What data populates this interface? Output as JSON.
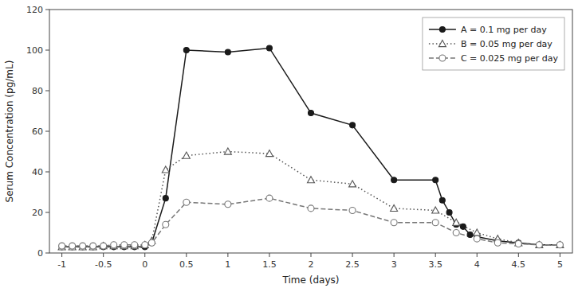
{
  "chart_data": {
    "type": "line",
    "xlabel": "Time (days)",
    "ylabel": "Serum Concentration (pg/mL)",
    "xlim": [
      -1.15,
      5.15
    ],
    "ylim": [
      0,
      120
    ],
    "xticks": [
      -1,
      -0.5,
      0,
      0.5,
      1,
      1.5,
      2,
      2.5,
      3,
      3.5,
      4,
      4.5,
      5
    ],
    "yticks": [
      0,
      20,
      40,
      60,
      80,
      100,
      120
    ],
    "grid": false,
    "legend": "upper right",
    "series": [
      {
        "name": "A = 0.1 mg per day",
        "color": "#1a1a1a",
        "marker": "circle",
        "line_style": "solid",
        "x": [
          -1,
          -0.875,
          -0.75,
          -0.625,
          -0.5,
          -0.375,
          -0.25,
          -0.125,
          0,
          0.083,
          0.25,
          0.5,
          1.0,
          1.5,
          2.0,
          2.5,
          3.0,
          3.5,
          3.583,
          3.667,
          3.75,
          3.833,
          3.917,
          4.0,
          4.25,
          4.5,
          4.75,
          5.0
        ],
        "values": [
          3,
          3,
          3,
          3,
          3,
          3,
          3,
          3,
          3,
          5,
          27,
          100,
          99,
          101,
          69,
          63,
          36,
          36,
          26,
          20,
          14,
          13,
          9,
          8,
          6,
          5,
          4,
          4
        ]
      },
      {
        "name": "B = 0.05 mg per day",
        "color": "#555555",
        "marker": "triangle-open",
        "line_style": "dotted",
        "x": [
          -1,
          -0.875,
          -0.75,
          -0.625,
          -0.5,
          -0.375,
          -0.25,
          -0.125,
          0,
          0.083,
          0.25,
          0.5,
          1.0,
          1.5,
          2.0,
          2.5,
          3.0,
          3.5,
          3.75,
          4.0,
          4.25,
          4.5,
          4.75,
          5.0
        ],
        "values": [
          3,
          3,
          3,
          3,
          3.5,
          3.5,
          3.5,
          3.5,
          4,
          6,
          41,
          48,
          50,
          49,
          36,
          34,
          22,
          21,
          15,
          10,
          7,
          5,
          4,
          4
        ]
      },
      {
        "name": "C = 0.025 mg per day",
        "color": "#777777",
        "marker": "circle-open",
        "line_style": "dashed",
        "x": [
          -1,
          -0.875,
          -0.75,
          -0.625,
          -0.5,
          -0.375,
          -0.25,
          -0.125,
          0,
          0.083,
          0.25,
          0.5,
          1.0,
          1.5,
          2.0,
          2.5,
          3.0,
          3.5,
          3.75,
          4.0,
          4.25,
          4.5,
          4.75,
          5.0
        ],
        "values": [
          3.5,
          3.5,
          3.5,
          3.5,
          3.5,
          4,
          4,
          4,
          4,
          5,
          14,
          25,
          24,
          27,
          22,
          21,
          15,
          15,
          10,
          7,
          5,
          4.5,
          4,
          4
        ]
      }
    ]
  }
}
